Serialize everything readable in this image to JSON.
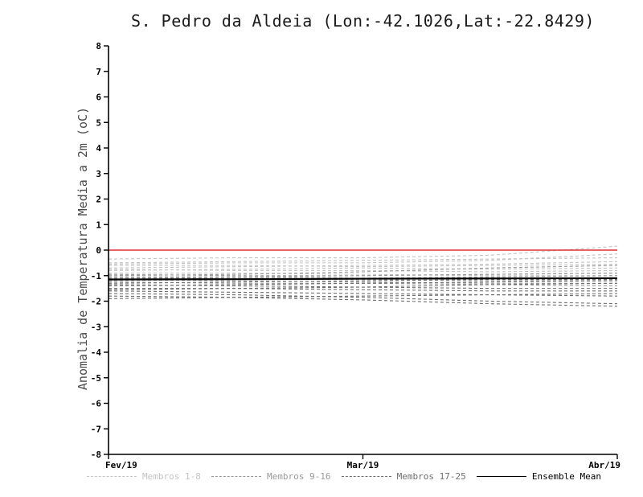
{
  "chart_data": {
    "type": "line",
    "title": "S. Pedro da Aldeia (Lon:-42.1026,Lat:-22.8429)",
    "ylabel": "Anomalia de Temperatura Media a 2m (oC)",
    "xlabel": "",
    "ylim": [
      -8,
      8
    ],
    "y_tick_step": 1,
    "y_ticks": [
      8,
      7,
      6,
      5,
      4,
      3,
      2,
      1,
      0,
      -1,
      -2,
      -3,
      -4,
      -5,
      -6,
      -7,
      -8
    ],
    "x_ticks": [
      "Fev/19",
      "Mar/19",
      "Abr/19"
    ],
    "x": [
      0,
      0.25,
      0.5,
      0.75,
      1
    ],
    "grid": false,
    "legend_position": "bottom",
    "zero_line": {
      "name": "Zero reference",
      "color": "#e03030",
      "values": [
        0,
        0,
        0,
        0,
        0
      ]
    },
    "ensemble_mean": {
      "name": "Ensemble Mean",
      "color": "#000000",
      "values": [
        -1.15,
        -1.14,
        -1.12,
        -1.11,
        -1.1
      ]
    },
    "member_groups": [
      {
        "name": "Membros 1-8",
        "color": "#c3c3c3",
        "members": [
          [
            -0.35,
            -0.3,
            -0.3,
            -0.2,
            0.15
          ],
          [
            -0.5,
            -0.45,
            -0.4,
            -0.35,
            -0.3
          ],
          [
            -0.55,
            -0.5,
            -0.5,
            -0.4,
            -0.15
          ],
          [
            -0.6,
            -0.6,
            -0.65,
            -0.6,
            -0.55
          ],
          [
            -0.7,
            -0.65,
            -0.6,
            -0.55,
            -0.45
          ],
          [
            -0.75,
            -0.8,
            -0.8,
            -0.85,
            -0.8
          ],
          [
            -0.8,
            -0.75,
            -0.7,
            -0.75,
            -0.7
          ],
          [
            -0.9,
            -0.9,
            -0.95,
            -1.0,
            -1.0
          ]
        ]
      },
      {
        "name": "Membros 9-16",
        "color": "#999999",
        "members": [
          [
            -0.95,
            -1.0,
            -1.0,
            -0.95,
            -0.9
          ],
          [
            -1.0,
            -0.95,
            -0.85,
            -0.7,
            -0.6
          ],
          [
            -1.05,
            -1.05,
            -1.1,
            -1.1,
            -1.1
          ],
          [
            -1.1,
            -1.1,
            -1.15,
            -1.2,
            -1.2
          ],
          [
            -1.1,
            -1.05,
            -1.0,
            -0.95,
            -0.9
          ],
          [
            -1.15,
            -1.2,
            -1.25,
            -1.3,
            -1.3
          ],
          [
            -1.2,
            -1.15,
            -1.1,
            -1.05,
            -1.0
          ],
          [
            -1.25,
            -1.3,
            -1.3,
            -1.35,
            -1.4
          ]
        ]
      },
      {
        "name": "Membros 17-25",
        "color": "#6e6e6e",
        "members": [
          [
            -1.3,
            -1.25,
            -1.2,
            -1.15,
            -1.15
          ],
          [
            -1.35,
            -1.4,
            -1.45,
            -1.5,
            -1.5
          ],
          [
            -1.4,
            -1.35,
            -1.3,
            -1.25,
            -1.2
          ],
          [
            -1.5,
            -1.5,
            -1.55,
            -1.6,
            -1.6
          ],
          [
            -1.55,
            -1.5,
            -1.45,
            -1.35,
            -1.3
          ],
          [
            -1.6,
            -1.65,
            -1.7,
            -1.75,
            -1.8
          ],
          [
            -1.7,
            -1.75,
            -1.85,
            -2.0,
            -2.1
          ],
          [
            -1.8,
            -1.85,
            -1.95,
            -2.1,
            -2.2
          ],
          [
            -1.9,
            -1.85,
            -1.8,
            -1.75,
            -1.7
          ]
        ]
      }
    ],
    "legend": [
      {
        "label": "Membros 1-8",
        "color": "#c3c3c3",
        "style": "dashed"
      },
      {
        "label": "Membros 9-16",
        "color": "#999999",
        "style": "dashed"
      },
      {
        "label": "Membros 17-25",
        "color": "#6e6e6e",
        "style": "dashed"
      },
      {
        "label": "Ensemble Mean",
        "color": "#000000",
        "style": "solid"
      }
    ]
  }
}
